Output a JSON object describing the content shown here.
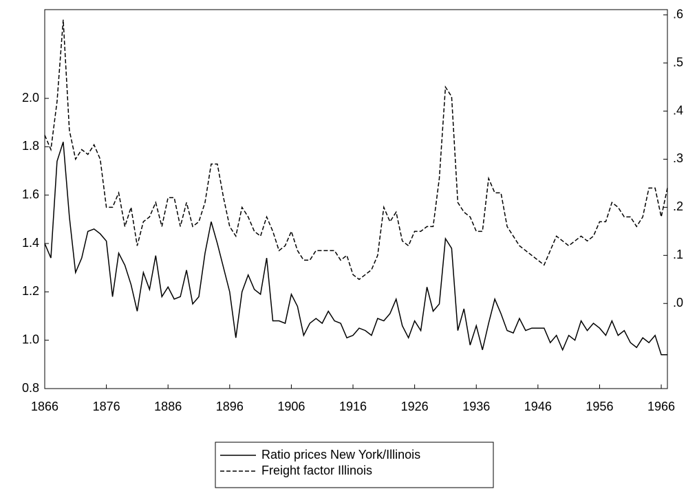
{
  "chart_data": {
    "type": "line",
    "x": [
      1866,
      1867,
      1868,
      1869,
      1870,
      1871,
      1872,
      1873,
      1874,
      1875,
      1876,
      1877,
      1878,
      1879,
      1880,
      1881,
      1882,
      1883,
      1884,
      1885,
      1886,
      1887,
      1888,
      1889,
      1890,
      1891,
      1892,
      1893,
      1894,
      1895,
      1896,
      1897,
      1898,
      1899,
      1900,
      1901,
      1902,
      1903,
      1904,
      1905,
      1906,
      1907,
      1908,
      1909,
      1910,
      1911,
      1912,
      1913,
      1914,
      1915,
      1916,
      1917,
      1918,
      1919,
      1920,
      1921,
      1922,
      1923,
      1924,
      1925,
      1926,
      1927,
      1928,
      1929,
      1930,
      1931,
      1932,
      1933,
      1934,
      1935,
      1936,
      1937,
      1938,
      1939,
      1940,
      1941,
      1942,
      1943,
      1944,
      1945,
      1946,
      1947,
      1948,
      1949,
      1950,
      1951,
      1952,
      1953,
      1954,
      1955,
      1956,
      1957,
      1958,
      1959,
      1960,
      1961,
      1962,
      1963,
      1964,
      1965,
      1966,
      1967
    ],
    "xlim": [
      1866,
      1967
    ],
    "xticks": [
      1866,
      1876,
      1886,
      1896,
      1906,
      1916,
      1926,
      1936,
      1946,
      1956,
      1966
    ],
    "ylim": [
      0.8,
      2.367
    ],
    "yticks": [
      {
        "value": 0.8,
        "label": "0.8"
      },
      {
        "value": 1,
        "label": "1.0"
      },
      {
        "value": 1.2,
        "label": "1.2"
      },
      {
        "value": 1.4,
        "label": "1.4"
      },
      {
        "value": 1.6,
        "label": "1.6"
      },
      {
        "value": 1.8,
        "label": "1.8"
      },
      {
        "value": 2,
        "label": "2.0"
      }
    ],
    "y2lim": [
      -0.177,
      0.611
    ],
    "y2ticks": [
      {
        "value": 0,
        "label": ".0"
      },
      {
        "value": 0.1,
        "label": ".1"
      },
      {
        "value": 0.2,
        "label": ".2"
      },
      {
        "value": 0.3,
        "label": ".3"
      },
      {
        "value": 0.4,
        "label": ".4"
      },
      {
        "value": 0.5,
        "label": ".5"
      },
      {
        "value": 0.6,
        "label": ".6"
      }
    ],
    "legend": "bottom",
    "series": [
      {
        "name": "Ratio prices New York/Illinois",
        "color": "#000000",
        "dash": false,
        "values": [
          1.4,
          1.34,
          1.74,
          1.82,
          1.51,
          1.28,
          1.34,
          1.45,
          1.46,
          1.44,
          1.41,
          1.18,
          1.36,
          1.31,
          1.23,
          1.12,
          1.28,
          1.21,
          1.35,
          1.18,
          1.22,
          1.17,
          1.18,
          1.29,
          1.15,
          1.18,
          1.36,
          1.49,
          1.4,
          1.3,
          1.2,
          1.01,
          1.2,
          1.27,
          1.21,
          1.19,
          1.34,
          1.08,
          1.08,
          1.07,
          1.19,
          1.14,
          1.02,
          1.07,
          1.09,
          1.07,
          1.12,
          1.08,
          1.07,
          1.01,
          1.02,
          1.05,
          1.04,
          1.02,
          1.09,
          1.08,
          1.11,
          1.17,
          1.06,
          1.01,
          1.08,
          1.04,
          1.22,
          1.12,
          1.15,
          1.42,
          1.38,
          1.04,
          1.13,
          0.98,
          1.06,
          0.96,
          1.07,
          1.17,
          1.11,
          1.04,
          1.03,
          1.09,
          1.04,
          1.05,
          1.05,
          1.05,
          0.99,
          1.02,
          0.96,
          1.02,
          1.0,
          1.08,
          1.04,
          1.07,
          1.05,
          1.02,
          1.08,
          1.02,
          1.04,
          0.99,
          0.97,
          1.01,
          0.99,
          1.02,
          0.94,
          0.94
        ]
      },
      {
        "name": "Freight factor Illinois",
        "color": "#000000",
        "dash": true,
        "axis": "y2",
        "values": [
          0.35,
          0.32,
          0.42,
          0.59,
          0.36,
          0.3,
          0.32,
          0.31,
          0.33,
          0.3,
          0.2,
          0.2,
          0.23,
          0.16,
          0.2,
          0.12,
          0.17,
          0.18,
          0.21,
          0.16,
          0.22,
          0.22,
          0.16,
          0.21,
          0.16,
          0.17,
          0.21,
          0.29,
          0.29,
          0.22,
          0.16,
          0.14,
          0.2,
          0.18,
          0.15,
          0.14,
          0.18,
          0.15,
          0.11,
          0.12,
          0.15,
          0.11,
          0.09,
          0.09,
          0.11,
          0.11,
          0.11,
          0.11,
          0.09,
          0.1,
          0.06,
          0.05,
          0.06,
          0.07,
          0.1,
          0.2,
          0.17,
          0.19,
          0.13,
          0.12,
          0.15,
          0.15,
          0.16,
          0.16,
          0.26,
          0.45,
          0.43,
          0.21,
          0.19,
          0.18,
          0.15,
          0.15,
          0.26,
          0.23,
          0.23,
          0.16,
          0.14,
          0.12,
          0.11,
          0.1,
          0.09,
          0.08,
          0.11,
          0.14,
          0.13,
          0.12,
          0.13,
          0.14,
          0.13,
          0.14,
          0.17,
          0.17,
          0.21,
          0.2,
          0.18,
          0.18,
          0.16,
          0.18,
          0.24,
          0.24,
          0.18,
          0.24
        ]
      }
    ]
  }
}
